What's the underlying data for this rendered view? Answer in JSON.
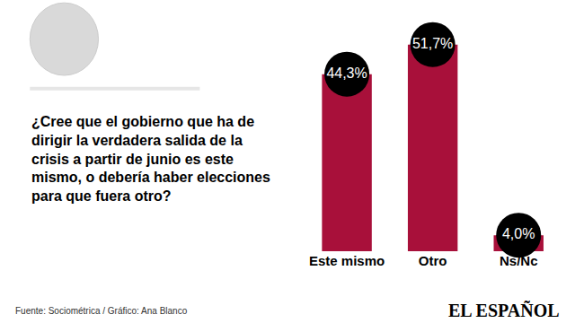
{
  "chart_data": {
    "type": "bar",
    "title": "¿Cree que el gobierno que ha de dirigir la verdadera salida de la crisis a partir de junio es este mismo, o debería haber elecciones para que fuera otro?",
    "categories": [
      "Este mismo",
      "Otro",
      "Ns/Nc"
    ],
    "values": [
      44.3,
      51.7,
      4.0
    ],
    "value_labels": [
      "44,3%",
      "51,7%",
      "4,0%"
    ],
    "colors": [
      "#a8103a",
      "#a8103a",
      "#a8103a"
    ],
    "ylim": [
      0,
      55
    ],
    "tick_labels": "x",
    "data_labels": true,
    "grid": false,
    "source": "Fuente: Sociométrica / Gráfico: Ana Blanco",
    "annotations": [
      "EL ESPAÑOL"
    ]
  }
}
